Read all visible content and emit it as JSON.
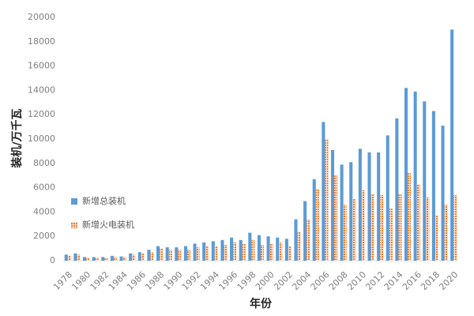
{
  "chart_data": {
    "type": "bar",
    "xlabel": "年份",
    "ylabel": "装机/万千瓦",
    "categories": [
      "1978",
      null,
      "1980",
      null,
      "1982",
      null,
      "1984",
      null,
      "1986",
      null,
      "1988",
      null,
      "1990",
      null,
      "1992",
      null,
      "1994",
      null,
      "1996",
      null,
      "1998",
      null,
      "2000",
      null,
      "2002",
      null,
      "2004",
      null,
      "2006",
      null,
      "2008",
      null,
      "2010",
      null,
      "2012",
      null,
      "2014",
      null,
      "2016",
      null,
      "2018",
      null,
      "2020"
    ],
    "series": [
      {
        "name": "新增总装机",
        "color": "#5b9bd5",
        "values": [
          500,
          600,
          300,
          300,
          300,
          400,
          350,
          600,
          700,
          900,
          1200,
          1100,
          1100,
          1200,
          1400,
          1500,
          1600,
          1700,
          1900,
          1700,
          2300,
          2100,
          2000,
          1900,
          1800,
          3400,
          4900,
          6700,
          11400,
          9100,
          7900,
          8100,
          9200,
          8900,
          8900,
          10300,
          11700,
          14200,
          13900,
          13100,
          12300,
          11100,
          19000
        ]
      },
      {
        "name": "新增火电装机",
        "color": "#ed7d31",
        "values": [
          400,
          500,
          250,
          250,
          250,
          300,
          300,
          500,
          600,
          700,
          1000,
          900,
          900,
          900,
          1100,
          1200,
          1200,
          1300,
          1500,
          1400,
          1700,
          1300,
          1400,
          1500,
          1200,
          2400,
          3400,
          5900,
          10000,
          7000,
          4600,
          5100,
          5800,
          5500,
          5400,
          4300,
          5500,
          7200,
          6300,
          5200,
          3700,
          4600,
          5400
        ]
      }
    ],
    "ylim": [
      0,
      20000
    ],
    "yticks": [
      0,
      2000,
      4000,
      6000,
      8000,
      10000,
      12000,
      14000,
      16000,
      18000,
      20000
    ],
    "legend": "left"
  }
}
